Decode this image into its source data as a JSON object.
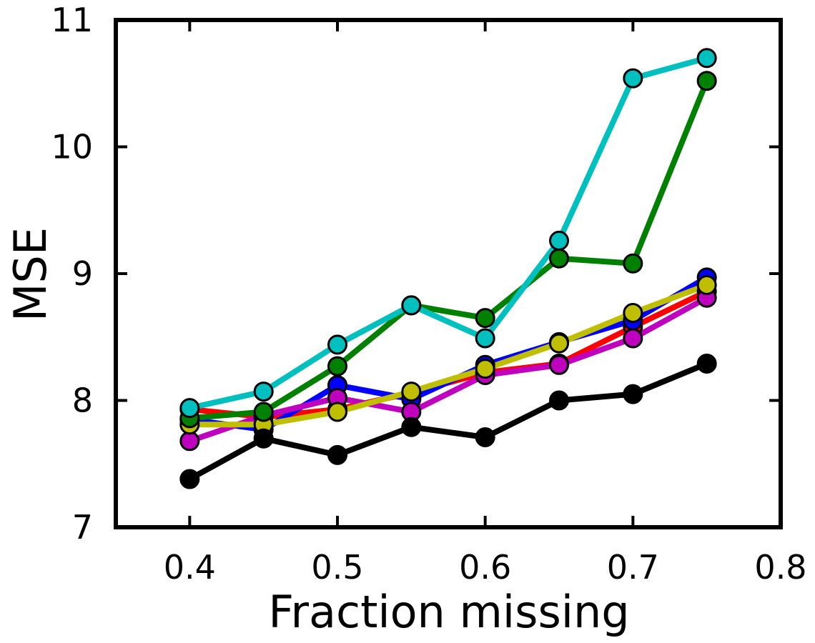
{
  "chart_data": {
    "type": "line",
    "title": "",
    "xlabel": "Fraction missing",
    "ylabel": "MSE",
    "xlim": [
      0.35,
      0.8
    ],
    "ylim": [
      7,
      11
    ],
    "xticks": [
      0.4,
      0.5,
      0.6,
      0.7,
      0.8
    ],
    "xtick_labels": [
      "0.4",
      "0.5",
      "0.6",
      "0.7",
      "0.8"
    ],
    "yticks": [
      7,
      8,
      9,
      10,
      11
    ],
    "ytick_labels": [
      "7",
      "8",
      "9",
      "10",
      "11"
    ],
    "grid": false,
    "legend": "none",
    "x": [
      0.4,
      0.45,
      0.5,
      0.55,
      0.6,
      0.65,
      0.7,
      0.75
    ],
    "series": [
      {
        "color": "#ff0000",
        "values": [
          7.93,
          7.87,
          7.93,
          8.06,
          8.22,
          8.29,
          8.58,
          8.86
        ]
      },
      {
        "color": "#0000ff",
        "values": [
          7.85,
          7.77,
          8.12,
          8.01,
          8.28,
          8.46,
          8.63,
          8.97
        ]
      },
      {
        "color": "#bf00bf",
        "values": [
          7.68,
          7.88,
          8.02,
          7.91,
          8.2,
          8.28,
          8.49,
          8.81
        ]
      },
      {
        "color": "#bfbf00",
        "values": [
          7.81,
          7.81,
          7.91,
          8.07,
          8.25,
          8.45,
          8.69,
          8.91
        ]
      },
      {
        "color": "#000000",
        "values": [
          7.38,
          7.7,
          7.57,
          7.79,
          7.71,
          8.0,
          8.05,
          8.29
        ]
      },
      {
        "color": "#008000",
        "values": [
          7.86,
          7.91,
          8.27,
          8.75,
          8.65,
          9.12,
          9.08,
          10.52
        ]
      },
      {
        "color": "#00bfbf",
        "values": [
          7.94,
          8.07,
          8.44,
          8.75,
          8.49,
          9.26,
          10.54,
          10.7
        ]
      }
    ]
  }
}
